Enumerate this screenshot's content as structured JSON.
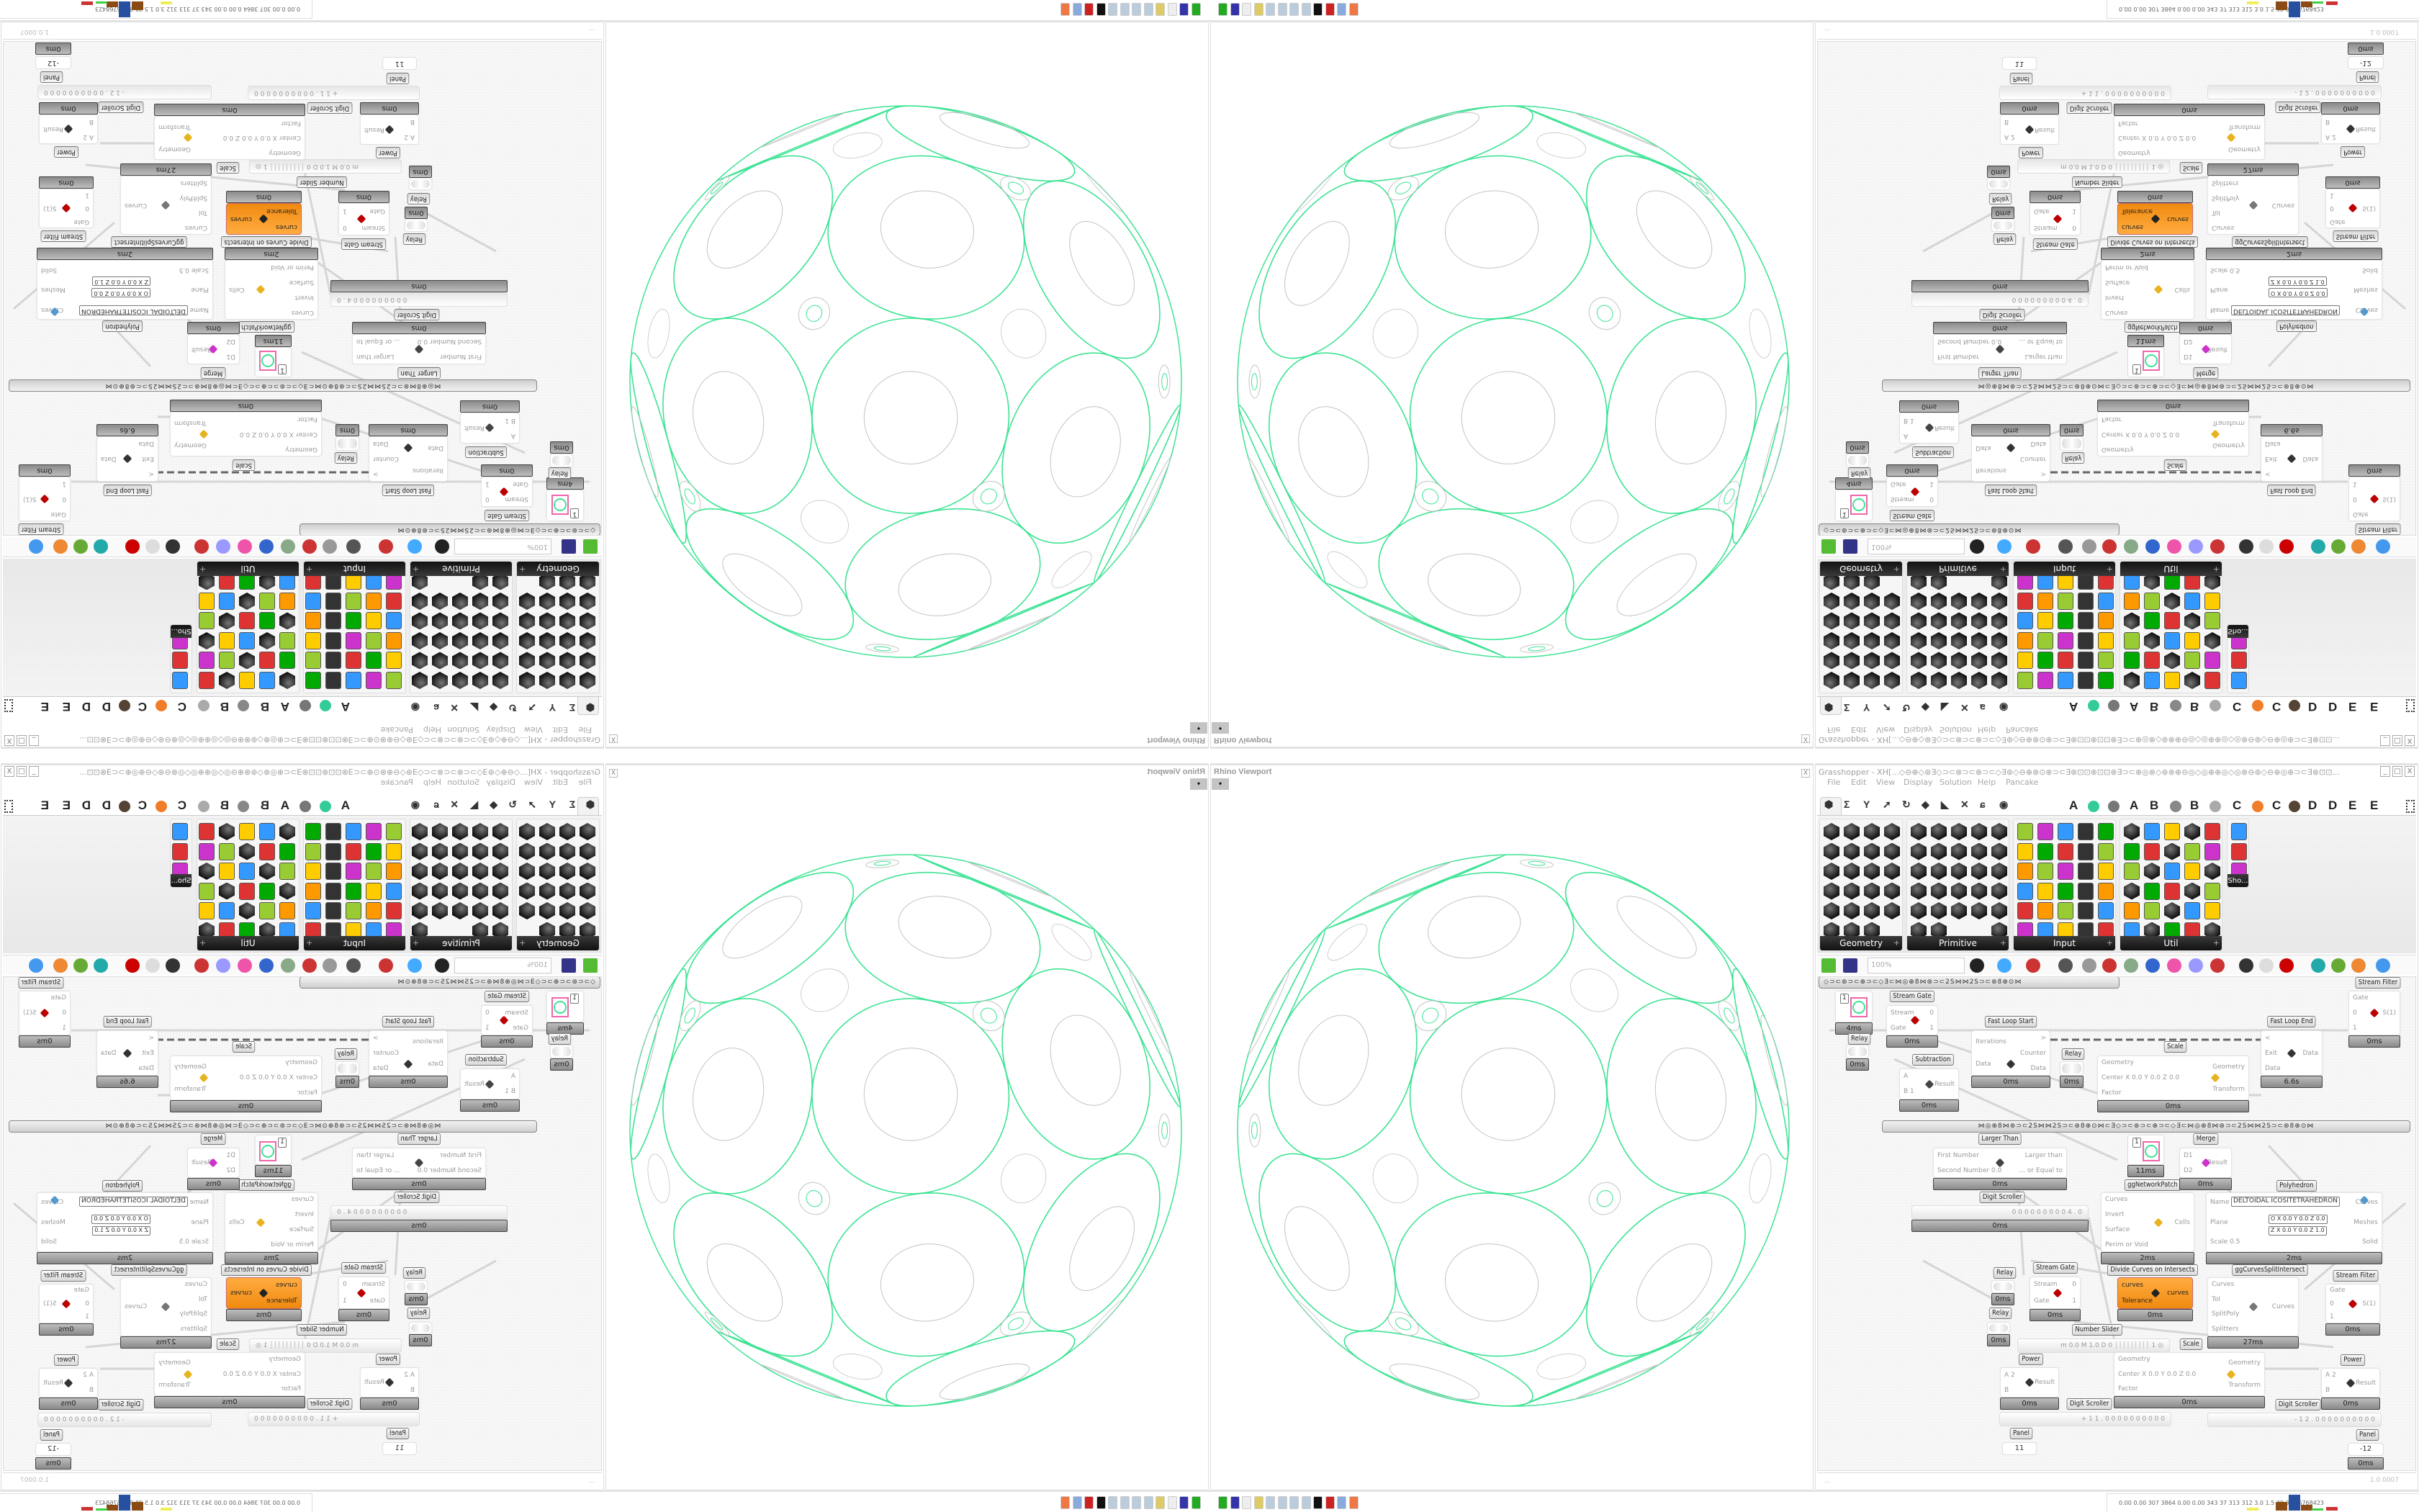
{
  "viewport": {
    "title": "Rhino Viewport",
    "close": "X",
    "dropdown": "▾"
  },
  "grasshopper": {
    "title": "Grasshopper - XH[...◇⊖⊕◇⊛∃◇⊃⊂⊗⊃⊂⊗⊃⊂◇∃⊛◇⊖⊕⊗⊙⊕⊃⊂∃⊗⊡⊡⊗⊡⊡⊗∃⊃⊂⊕◎⊗◇⊛⊗⊕⊖◎◇◎⊕⊕◎◇◎⊗⊖⊛◇⊖⊕◎⊕⊃⊂∃⊗⊡⊡...",
    "window_buttons": [
      "_",
      "□",
      "X"
    ],
    "menu": [
      "File",
      "Edit",
      "View",
      "Display",
      "Solution",
      "Help",
      "Pancake"
    ],
    "tab_letters": [
      "A",
      "A",
      "B",
      "B",
      "C",
      "C",
      "D",
      "D",
      "E",
      "E"
    ],
    "palettes": [
      {
        "name": "Geometry"
      },
      {
        "name": "Primitive"
      },
      {
        "name": "Input"
      },
      {
        "name": "Util"
      },
      {
        "name": "Sho..."
      }
    ],
    "toolbar": {
      "zoom": "100%"
    },
    "status": {
      "left": "...",
      "version": "1.0.0007"
    }
  },
  "canvas": {
    "group_bar_1": "◇⊃⊂⊛⊃⊂⊕⊃⊂◇∃⊂⋈◎⊕8⋈⊛⊃⊂2S⋈⋈2S⊃⊂⊛8⊕⊙⋈",
    "group_bar_2": "⋈◎⊕8⋈⊛⊃⊂2S⋈⋈2S⊃⊂⊛8⊕⊙⋈⊂∃◇⊃⊂⊛⊃⊂⊕⊃⊂◇∃⊂⋈◎⊕8⋈⊛⊃⊂2S⋈⋈2S⊃⊂⊛8⊕⊙⋈",
    "components": [
      {
        "label": "",
        "kind": "preview",
        "value": "1",
        "footer": "4ms"
      },
      {
        "label": "Stream Gate",
        "inputs": [
          "Stream",
          "Gate"
        ],
        "outputs": [
          "0",
          "1"
        ],
        "icon": "stream-gate-icon",
        "footer": "0ms"
      },
      {
        "label": "Relay",
        "kind": "relay",
        "footer": "0ms"
      },
      {
        "label": "Fast Loop Start",
        "inputs": [
          "Iterations",
          "Data"
        ],
        "outputs": [
          ">",
          "Counter",
          "Data"
        ],
        "icon": "loop-start-icon",
        "footer": "0ms"
      },
      {
        "label": "Relay",
        "kind": "relay",
        "footer": "0ms"
      },
      {
        "label": "Scale",
        "inputs": [
          "Geometry",
          "Center  X 0.0 Y 0.0 Z 0.0",
          "Factor"
        ],
        "outputs": [
          "Geometry",
          "Transform"
        ],
        "icon": "scale-icon",
        "footer": "0ms"
      },
      {
        "label": "Fast Loop End",
        "inputs": [
          "<",
          "Exit",
          "Data"
        ],
        "outputs": [
          "Data"
        ],
        "icon": "loop-end-icon",
        "footer": "6.6s"
      },
      {
        "label": "Stream Filter",
        "inputs": [
          "Gate",
          "0",
          "1"
        ],
        "outputs": [
          "S(1)"
        ],
        "icon": "stream-filter-icon",
        "footer": "0ms"
      },
      {
        "label": "Subtraction",
        "inputs": [
          "A",
          "B 1"
        ],
        "outputs": [
          "Result"
        ],
        "icon": "minus-icon",
        "footer": "0ms"
      },
      {
        "label": "Larger Than",
        "inputs": [
          "First Number",
          "Second Number 0.0"
        ],
        "outputs": [
          "Larger than",
          "... or Equal to"
        ],
        "icon": "greater-than-icon",
        "footer": "0ms"
      },
      {
        "label": "ggNetworkPatch",
        "kind": "preview",
        "value": "1",
        "footer": "11ms"
      },
      {
        "label": "Merge",
        "inputs": [
          "D1",
          "D2"
        ],
        "outputs": [
          "Result"
        ],
        "icon": "merge-icon",
        "footer": "0ms"
      },
      {
        "label": "Digit Scroller",
        "kind": "slider",
        "value": "0 0 0 0 0 0 0 0 0 4 . 0",
        "footer": "0ms"
      },
      {
        "label": "",
        "inputs": [
          "Curves",
          "Invert",
          "Surface",
          "Perim or Void"
        ],
        "outputs": [
          "Cells"
        ],
        "icon": "cells-icon",
        "footer": "2ms"
      },
      {
        "label": "Polyhedron",
        "inputs": [
          "Name",
          "Plane",
          "Scale 0.5"
        ],
        "outputs": [
          "Curves",
          "Meshes",
          "Solid"
        ],
        "name_value": "DELTOIDAL ICOSITETRAHEDRON",
        "plane_o": "O X 0.0 Y 0.0 Z 0.0",
        "plane_z": "Z X 0.0 Y 0.0 Z 1.0",
        "icon": "polyhedron-icon",
        "footer": "2ms"
      },
      {
        "label": "Relay",
        "kind": "relay",
        "footer": "0ms"
      },
      {
        "label": "Stream Gate",
        "inputs": [
          "Stream",
          "Gate"
        ],
        "outputs": [
          "0",
          "1"
        ],
        "icon": "stream-gate-icon",
        "footer": "0ms"
      },
      {
        "label": "Divide Curves on Intersects",
        "inputs": [
          "curves",
          "Tolerance"
        ],
        "outputs": [
          "curves"
        ],
        "icon": "divide-curves-icon",
        "footer": "0ms",
        "highlight": "#f39a1f"
      },
      {
        "label": "ggCurvesSplitIntersect",
        "inputs": [
          "Curves",
          "Tol",
          "SplitPoly",
          "Splitters"
        ],
        "outputs": [
          "Curves"
        ],
        "icon": "split-icon",
        "footer": "27ms"
      },
      {
        "label": "Stream Filter",
        "inputs": [
          "Gate",
          "0",
          "1"
        ],
        "outputs": [
          "S(1)"
        ],
        "icon": "stream-filter-icon",
        "footer": "0ms"
      },
      {
        "label": "Relay",
        "kind": "relay",
        "footer": "0ms"
      },
      {
        "label": "Number Slider",
        "kind": "slider",
        "value": "m 0.0  M 1.0  D 0  ┊┊┊┊┊┊┊┊┊ 1 ◎"
      },
      {
        "label": "Scale",
        "inputs": [
          "Geometry",
          "Center  X 0.0 Y 0.0 Z 0.0",
          "Factor"
        ],
        "outputs": [
          "Geometry",
          "Transform"
        ],
        "icon": "scale-icon",
        "footer": "0ms"
      },
      {
        "label": "Power",
        "inputs": [
          "A 2",
          "B"
        ],
        "outputs": [
          "Result"
        ],
        "icon": "power-icon",
        "footer": "0ms"
      },
      {
        "label": "Digit Scroller",
        "kind": "slider",
        "value": "+ 1 1 . 0 0 0 0 0 0 0 0 0 0"
      },
      {
        "label": "Digit Scroller",
        "kind": "slider",
        "value": "- 1 2 . 0 0 0 0 0 0 0 0 0 0"
      },
      {
        "label": "Power",
        "inputs": [
          "A 2",
          "B"
        ],
        "outputs": [
          "Result"
        ],
        "icon": "power-icon",
        "footer": "0ms"
      },
      {
        "label": "Panel",
        "kind": "panel",
        "value": "11"
      },
      {
        "label": "Panel",
        "kind": "panel",
        "value": "-12",
        "footer": "0ms"
      }
    ]
  },
  "taskbar": {
    "stats": "0.00 0.00 307 3864 0.00 0.00 343 37 313 312 3.0 1.5 39 34 66768423"
  },
  "colors": {
    "geometry_green": "#3ee394",
    "preview_gray": "#c4c4c4",
    "selected_orange": "#f39a1f"
  }
}
